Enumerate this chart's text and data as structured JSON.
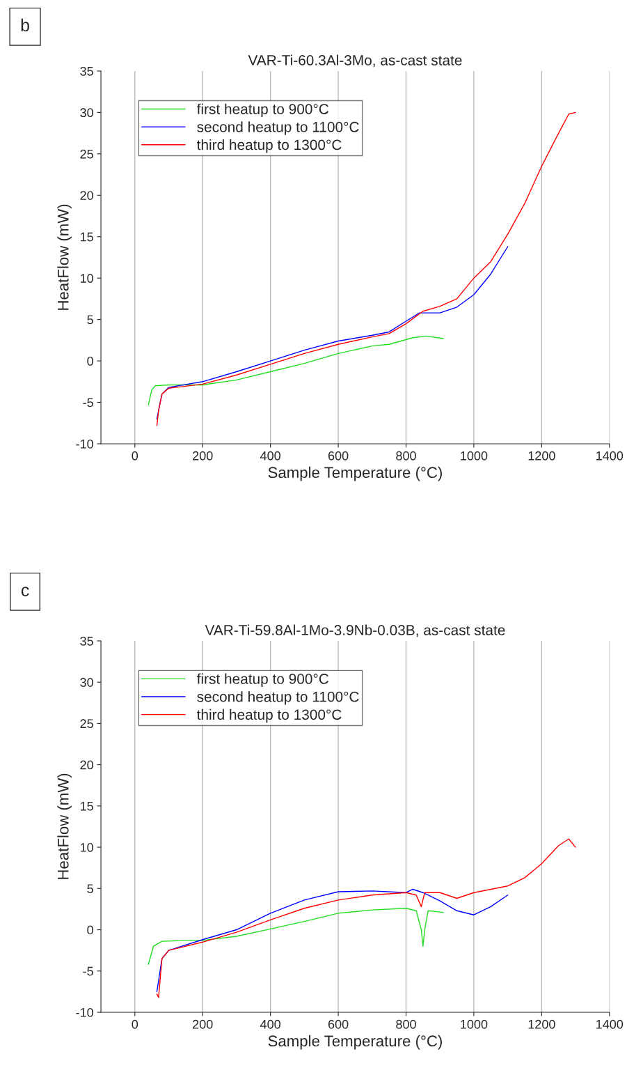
{
  "chart_data": [
    {
      "type": "line",
      "title": "VAR-Ti-60.3Al-3Mo, as-cast state",
      "xlabel": "Sample Temperature (°C)",
      "ylabel": "HeatFlow (mW)",
      "annotations": [
        "b"
      ],
      "xlim": [
        -100,
        1400
      ],
      "ylim": [
        -10,
        35
      ],
      "xticks": [
        0,
        200,
        400,
        600,
        800,
        1000,
        1200,
        1400
      ],
      "yticks": [
        -10,
        -5,
        0,
        5,
        10,
        15,
        20,
        25,
        30,
        35
      ],
      "grid": "x",
      "legend": "top left",
      "line_style": "solid",
      "marker": "none",
      "series": [
        {
          "name": "first heatup to 900°C",
          "color": "#22dd22",
          "x": [
            40,
            50,
            60,
            100,
            200,
            300,
            400,
            500,
            600,
            700,
            750,
            820,
            860,
            910
          ],
          "values": [
            -5.3,
            -3.5,
            -3,
            -2.9,
            -2.9,
            -2.3,
            -1.3,
            -0.3,
            0.9,
            1.8,
            2,
            2.8,
            3,
            2.7
          ]
        },
        {
          "name": "second heatup to 1100°C",
          "color": "#0000ff",
          "x": [
            65,
            80,
            100,
            200,
            300,
            400,
            500,
            600,
            700,
            750,
            800,
            840,
            900,
            950,
            1000,
            1050,
            1100
          ],
          "values": [
            -7,
            -4,
            -3.2,
            -2.5,
            -1.3,
            0,
            1.3,
            2.4,
            3.1,
            3.5,
            4.8,
            5.8,
            5.8,
            6.5,
            8,
            10.5,
            13.8
          ]
        },
        {
          "name": "third heatup to 1300°C",
          "color": "#ff0000",
          "x": [
            65,
            70,
            80,
            100,
            200,
            300,
            400,
            500,
            600,
            700,
            750,
            800,
            850,
            900,
            950,
            1000,
            1050,
            1100,
            1150,
            1200,
            1250,
            1280,
            1300
          ],
          "values": [
            -7.8,
            -6,
            -4,
            -3.3,
            -2.8,
            -1.7,
            -0.4,
            0.9,
            2,
            2.9,
            3.3,
            4.5,
            6,
            6.6,
            7.5,
            10,
            12,
            15.3,
            19,
            23.5,
            27.5,
            29.8,
            30
          ]
        }
      ]
    },
    {
      "type": "line",
      "title": "VAR-Ti-59.8Al-1Mo-3.9Nb-0.03B, as-cast state",
      "xlabel": "Sample Temperature (°C)",
      "ylabel": "HeatFlow (mW)",
      "annotations": [
        "c"
      ],
      "xlim": [
        -100,
        1400
      ],
      "ylim": [
        -10,
        35
      ],
      "xticks": [
        0,
        200,
        400,
        600,
        800,
        1000,
        1200,
        1400
      ],
      "yticks": [
        -10,
        -5,
        0,
        5,
        10,
        15,
        20,
        25,
        30,
        35
      ],
      "grid": "x",
      "legend": "top left",
      "line_style": "solid",
      "marker": "none",
      "series": [
        {
          "name": "first heatup to 900°C",
          "color": "#22dd22",
          "x": [
            40,
            55,
            80,
            150,
            200,
            300,
            400,
            500,
            600,
            700,
            800,
            830,
            845,
            850,
            855,
            865,
            910
          ],
          "values": [
            -4.2,
            -2,
            -1.4,
            -1.3,
            -1.3,
            -0.8,
            0.1,
            1,
            2,
            2.4,
            2.6,
            2.3,
            0,
            -2,
            0,
            2.3,
            2.1
          ]
        },
        {
          "name": "second heatup to 1100°C",
          "color": "#0000ff",
          "x": [
            65,
            80,
            100,
            200,
            300,
            400,
            500,
            600,
            700,
            800,
            820,
            850,
            900,
            950,
            1000,
            1050,
            1100
          ],
          "values": [
            -7.5,
            -3.5,
            -2.5,
            -1.2,
            0,
            2,
            3.6,
            4.6,
            4.7,
            4.5,
            4.9,
            4.5,
            3.5,
            2.3,
            1.8,
            2.8,
            4.2
          ]
        },
        {
          "name": "third heatup to 1300°C",
          "color": "#ff0000",
          "x": [
            65,
            70,
            80,
            100,
            200,
            300,
            400,
            500,
            600,
            700,
            800,
            830,
            845,
            855,
            900,
            950,
            1000,
            1100,
            1150,
            1200,
            1250,
            1280,
            1300
          ],
          "values": [
            -7.8,
            -8.2,
            -3.5,
            -2.5,
            -1.5,
            -0.3,
            1.2,
            2.6,
            3.6,
            4.2,
            4.5,
            4.2,
            2.8,
            4.5,
            4.5,
            3.8,
            4.5,
            5.3,
            6.3,
            8,
            10.2,
            11,
            10
          ]
        }
      ]
    }
  ]
}
